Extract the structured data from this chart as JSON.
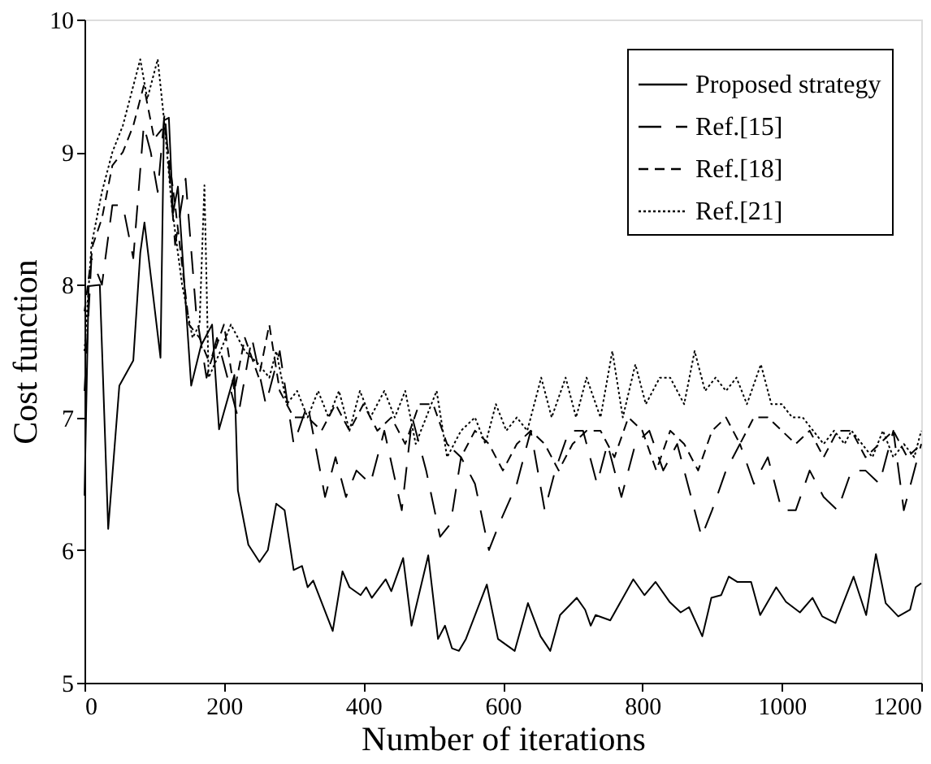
{
  "chart_data": {
    "type": "line",
    "xlabel": "Number of iterations",
    "ylabel": "Cost function",
    "xlim": [
      0,
      1200
    ],
    "ylim": [
      5,
      10
    ],
    "xticks": [
      0,
      200,
      400,
      600,
      800,
      1000,
      1200
    ],
    "yticks": [
      5,
      6,
      7,
      8,
      9,
      10
    ],
    "grid": false,
    "legend": "top right",
    "marker": "none",
    "series": [
      {
        "name": "Proposed strategy",
        "color": "#000000",
        "line_style": "solid",
        "x": [
          0,
          6,
          22,
          34,
          50,
          70,
          80,
          86,
          109,
          114,
          121,
          127,
          134,
          153,
          167,
          183,
          193,
          215,
          220,
          235,
          251,
          263,
          275,
          287,
          300,
          312,
          320,
          328,
          356,
          370,
          380,
          396,
          404,
          412,
          432,
          440,
          457,
          469,
          493,
          507,
          517,
          527,
          537,
          547,
          577,
          593,
          617,
          636,
          654,
          668,
          682,
          706,
          718,
          726,
          733,
          754,
          787,
          803,
          819,
          839,
          855,
          867,
          886,
          895,
          899,
          913,
          924,
          936,
          956,
          969,
          992,
          1006,
          1026,
          1044,
          1058,
          1077,
          1103,
          1121,
          1135,
          1149,
          1167,
          1184,
          1192,
          1200
        ],
        "values": [
          6.41,
          7.99,
          8.0,
          6.16,
          7.24,
          7.43,
          8.24,
          8.47,
          7.45,
          9.24,
          9.26,
          8.54,
          8.74,
          7.24,
          7.54,
          7.7,
          6.91,
          7.32,
          6.45,
          6.04,
          5.91,
          6.0,
          6.35,
          6.3,
          5.85,
          5.88,
          5.72,
          5.77,
          5.39,
          5.84,
          5.72,
          5.66,
          5.72,
          5.64,
          5.78,
          5.69,
          5.94,
          5.43,
          5.96,
          5.33,
          5.43,
          5.26,
          5.24,
          5.33,
          5.74,
          5.33,
          5.24,
          5.6,
          5.35,
          5.24,
          5.51,
          5.64,
          5.55,
          5.43,
          5.51,
          5.47,
          5.78,
          5.66,
          5.76,
          5.61,
          5.53,
          5.57,
          5.35,
          5.55,
          5.64,
          5.66,
          5.8,
          5.76,
          5.76,
          5.51,
          5.72,
          5.61,
          5.53,
          5.64,
          5.5,
          5.45,
          5.8,
          5.51,
          5.97,
          5.6,
          5.5,
          5.55,
          5.72,
          5.75
        ]
      },
      {
        "name": "Ref.[15]",
        "color": "#000000",
        "line_style": "longdash",
        "x": [
          0,
          10,
          25,
          40,
          55,
          70,
          85,
          95,
          105,
          115,
          130,
          145,
          160,
          175,
          190,
          205,
          220,
          240,
          260,
          280,
          300,
          320,
          345,
          360,
          375,
          390,
          410,
          430,
          455,
          470,
          490,
          510,
          525,
          540,
          560,
          580,
          595,
          620,
          640,
          660,
          675,
          695,
          715,
          735,
          750,
          770,
          790,
          810,
          830,
          850,
          870,
          885,
          900,
          920,
          940,
          960,
          980,
          1000,
          1020,
          1040,
          1060,
          1080,
          1100,
          1120,
          1140,
          1160,
          1175,
          1190,
          1200
        ],
        "values": [
          7.2,
          8.2,
          8.0,
          8.6,
          8.6,
          8.2,
          9.2,
          9.0,
          8.7,
          9.3,
          8.3,
          8.8,
          7.8,
          7.3,
          7.6,
          7.3,
          7.0,
          7.6,
          7.1,
          7.5,
          6.8,
          7.1,
          6.4,
          6.7,
          6.4,
          6.6,
          6.5,
          6.9,
          6.3,
          7.0,
          6.6,
          6.1,
          6.2,
          6.7,
          6.5,
          6.0,
          6.2,
          6.5,
          6.9,
          6.3,
          6.6,
          6.9,
          6.9,
          6.5,
          6.8,
          6.4,
          6.8,
          6.9,
          6.6,
          6.8,
          6.4,
          6.1,
          6.3,
          6.6,
          6.8,
          6.5,
          6.7,
          6.3,
          6.3,
          6.6,
          6.4,
          6.3,
          6.6,
          6.6,
          6.5,
          6.9,
          6.3,
          6.6,
          6.8
        ]
      },
      {
        "name": "Ref.[18]",
        "color": "#000000",
        "line_style": "dashed",
        "x": [
          0,
          12,
          25,
          40,
          55,
          70,
          85,
          100,
          115,
          130,
          150,
          165,
          180,
          200,
          215,
          230,
          250,
          265,
          280,
          300,
          320,
          340,
          360,
          380,
          400,
          420,
          440,
          460,
          480,
          500,
          520,
          540,
          560,
          580,
          600,
          620,
          640,
          660,
          680,
          700,
          720,
          740,
          760,
          780,
          800,
          820,
          840,
          860,
          880,
          900,
          920,
          940,
          960,
          980,
          1000,
          1020,
          1040,
          1060,
          1080,
          1100,
          1120,
          1140,
          1160,
          1180,
          1200
        ],
        "values": [
          7.8,
          8.3,
          8.5,
          8.9,
          9.0,
          9.2,
          9.5,
          9.1,
          9.2,
          8.6,
          7.7,
          7.6,
          7.4,
          7.7,
          7.2,
          7.6,
          7.3,
          7.7,
          7.2,
          7.0,
          7.0,
          6.9,
          7.1,
          6.9,
          7.1,
          6.9,
          7.0,
          6.8,
          7.1,
          7.1,
          6.8,
          6.7,
          6.9,
          6.8,
          6.6,
          6.8,
          6.9,
          6.8,
          6.6,
          6.8,
          6.9,
          6.9,
          6.7,
          7.0,
          6.9,
          6.6,
          6.9,
          6.8,
          6.6,
          6.9,
          7.0,
          6.8,
          7.0,
          7.0,
          6.9,
          6.8,
          6.9,
          6.7,
          6.9,
          6.9,
          6.7,
          6.8,
          6.9,
          6.7,
          6.8
        ]
      },
      {
        "name": "Ref.[21]",
        "color": "#000000",
        "line_style": "dotted",
        "x": [
          0,
          10,
          25,
          40,
          55,
          70,
          80,
          90,
          105,
          115,
          125,
          140,
          155,
          165,
          172,
          178,
          195,
          210,
          230,
          250,
          265,
          275,
          290,
          305,
          320,
          335,
          350,
          365,
          380,
          395,
          410,
          430,
          445,
          460,
          475,
          490,
          505,
          520,
          540,
          560,
          575,
          590,
          605,
          620,
          635,
          655,
          670,
          690,
          705,
          720,
          740,
          757,
          772,
          790,
          805,
          825,
          840,
          860,
          875,
          890,
          905,
          920,
          935,
          950,
          970,
          985,
          1000,
          1015,
          1030,
          1045,
          1060,
          1075,
          1090,
          1100,
          1115,
          1130,
          1145,
          1160,
          1175,
          1190,
          1200
        ],
        "values": [
          7.5,
          8.3,
          8.7,
          9.0,
          9.2,
          9.5,
          9.7,
          9.4,
          9.7,
          9.2,
          8.6,
          8.0,
          7.6,
          7.7,
          8.75,
          7.3,
          7.5,
          7.7,
          7.5,
          7.4,
          7.3,
          7.5,
          7.1,
          7.2,
          7.0,
          7.2,
          7.0,
          7.2,
          6.9,
          7.2,
          7.0,
          7.2,
          7.0,
          7.2,
          6.8,
          7.0,
          7.2,
          6.7,
          6.9,
          7.0,
          6.8,
          7.1,
          6.9,
          7.0,
          6.9,
          7.3,
          7.0,
          7.3,
          7.0,
          7.3,
          7.0,
          7.5,
          7.0,
          7.4,
          7.1,
          7.3,
          7.3,
          7.1,
          7.5,
          7.2,
          7.3,
          7.2,
          7.3,
          7.1,
          7.4,
          7.1,
          7.1,
          7.0,
          7.0,
          6.9,
          6.8,
          6.9,
          6.8,
          6.9,
          6.8,
          6.7,
          6.9,
          6.7,
          6.8,
          6.7,
          6.9
        ]
      }
    ]
  }
}
